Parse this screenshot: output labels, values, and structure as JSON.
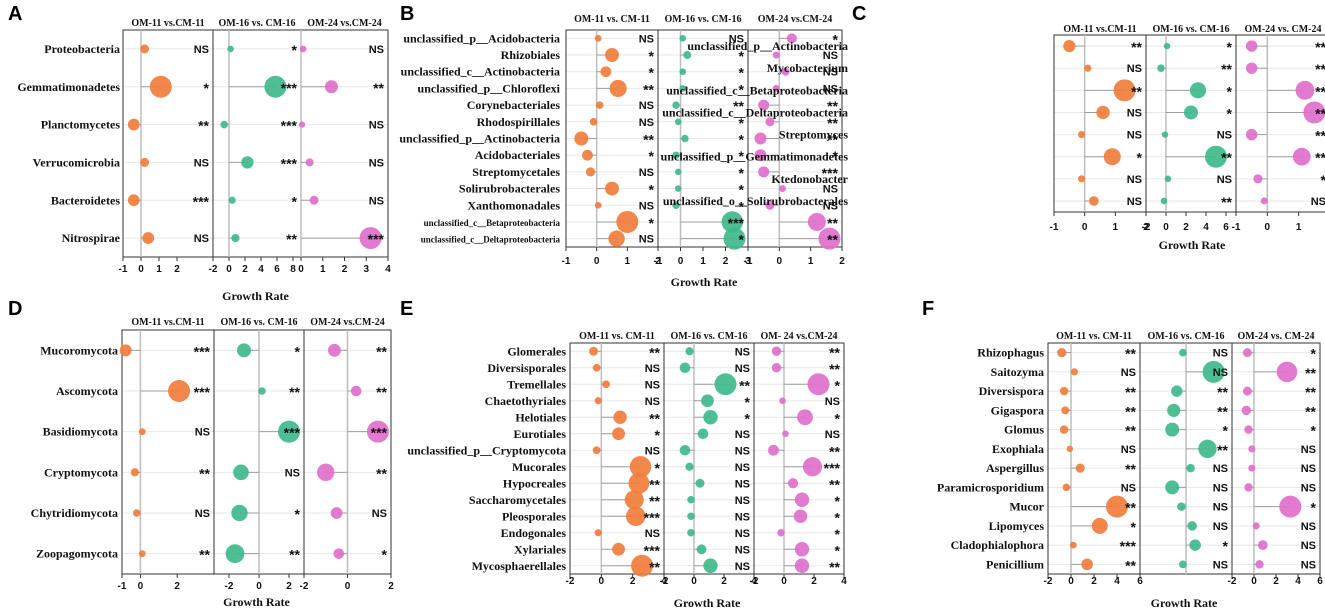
{
  "colors": {
    "om11": "#f07d3c",
    "om16": "#3fba8c",
    "om24": "#e06fcc",
    "frame": "#333333",
    "grid": "#e8e8e8"
  },
  "chart_data": [
    {
      "panel": "A",
      "type": "scatter",
      "xlabel": "Growth Rate",
      "categories": [
        "Proteobacteria",
        "Gemmatimonadetes",
        "Planctomycetes",
        "Verrucomicrobia",
        "Bacteroidetes",
        "Nitrospirae"
      ],
      "series": [
        {
          "name": "OM-11 vs.CM-11",
          "xlim": [
            -1,
            4
          ],
          "ticks": [
            -1,
            0,
            1,
            2
          ],
          "values": [
            0.2,
            1.1,
            -0.4,
            0.2,
            -0.4,
            0.4
          ],
          "sig": [
            "NS",
            "*",
            "**",
            "NS",
            "***",
            "NS"
          ]
        },
        {
          "name": "OM-16 vs. CM-16",
          "xlim": [
            -2,
            9
          ],
          "ticks": [
            -2,
            0,
            2,
            4,
            6,
            8
          ],
          "values": [
            0.2,
            5.8,
            -0.6,
            2.3,
            0.4,
            0.8
          ],
          "sig": [
            "*",
            "***",
            "***",
            "***",
            "*",
            "**"
          ]
        },
        {
          "name": "OM-24 vs.CM-24",
          "xlim": [
            0,
            4
          ],
          "ticks": [
            0,
            1,
            2,
            3,
            4
          ],
          "values": [
            0.1,
            1.4,
            0.05,
            0.4,
            0.6,
            3.2
          ],
          "sig": [
            "NS",
            "**",
            "NS",
            "NS",
            "NS",
            "***"
          ]
        }
      ]
    },
    {
      "panel": "B",
      "type": "scatter",
      "xlabel": "Growth Rate",
      "categories": [
        "unclassified_p__Acidobacteria",
        "Rhizobiales",
        "unclassified_c__Actinobacteria",
        "unclassified_p__Chloroflexi",
        "Corynebacteriales",
        "Rhodospirillales",
        "unclassified_p__Actinobacteria",
        "Acidobacteriales",
        "Streptomycetales",
        "Solirubrobacterales",
        "Xanthomonadales",
        "unclassified_c__Betaproteobacteria",
        "unclassified_c__Deltaproteobacteria"
      ],
      "series": [
        {
          "name": "OM-11 vs. CM-11",
          "xlim": [
            -1,
            2
          ],
          "ticks": [
            -1,
            0,
            1,
            2
          ],
          "values": [
            0.05,
            0.5,
            0.3,
            0.7,
            0.1,
            -0.1,
            -0.5,
            -0.3,
            -0.2,
            0.5,
            0.05,
            1.0,
            0.65
          ],
          "sig": [
            "NS",
            "*",
            "*",
            "**",
            "NS",
            "NS",
            "**",
            "*",
            "NS",
            "*",
            "NS",
            "*",
            "NS"
          ]
        },
        {
          "name": "OM-16 vs. CM-16",
          "xlim": [
            -1,
            3
          ],
          "ticks": [
            -1,
            0,
            1,
            2,
            3
          ],
          "values": [
            0.1,
            0.3,
            0.1,
            0.1,
            -0.2,
            -0.1,
            0.2,
            -0.2,
            -0.1,
            -0.1,
            -0.2,
            2.3,
            2.4
          ],
          "sig": [
            "NS",
            "*",
            "*",
            "*",
            "**",
            "*",
            "*",
            "*",
            "*",
            "*",
            "*",
            "***",
            "*"
          ]
        },
        {
          "name": "OM-24 vs.CM-24",
          "xlim": [
            -1,
            2
          ],
          "ticks": [
            -1,
            0,
            1,
            2
          ],
          "values": [
            0.4,
            -0.1,
            0.2,
            -0.1,
            -0.5,
            -0.3,
            -0.6,
            -0.6,
            -0.5,
            0.1,
            -0.3,
            1.2,
            1.6
          ],
          "sig": [
            "*",
            "NS",
            "NS",
            "NS",
            "**",
            "**",
            "**",
            "*",
            "***",
            "NS",
            "NS",
            "**",
            "**"
          ]
        }
      ]
    },
    {
      "panel": "C",
      "type": "scatter",
      "xlabel": "Growth Rate",
      "categories": [
        "unclassified_p__Actinobacteria",
        "Mycobacterium",
        "unclassified_c__Betaproteobacteria",
        "unclassified_c__Deltaproteobacteria",
        "Streptomyces",
        "unclassified_p__Gemmatimonadetes",
        "Ktedonobacter",
        "unclassified_o__Solirubrobacterales"
      ],
      "series": [
        {
          "name": "OM-11 vs.CM-11",
          "xlim": [
            -1,
            2
          ],
          "ticks": [
            -1,
            0,
            1,
            2
          ],
          "values": [
            -0.5,
            0.1,
            1.3,
            0.6,
            -0.1,
            0.9,
            -0.1,
            0.3
          ],
          "sig": [
            "**",
            "NS",
            "**",
            "NS",
            "NS",
            "*",
            "NS",
            "NS"
          ]
        },
        {
          "name": "OM-16 vs. CM-16",
          "xlim": [
            -2,
            7
          ],
          "ticks": [
            -2,
            0,
            2,
            4,
            6
          ],
          "values": [
            0.1,
            -0.5,
            3.2,
            2.5,
            -0.1,
            5.0,
            0.2,
            -0.2
          ],
          "sig": [
            "*",
            "**",
            "*",
            "*",
            "NS",
            "**",
            "NS",
            "**"
          ]
        },
        {
          "name": "OM-24 vs. CM-24",
          "xlim": [
            -1,
            2
          ],
          "ticks": [
            -1,
            0,
            1,
            2
          ],
          "values": [
            -0.5,
            -0.5,
            1.2,
            1.5,
            -0.5,
            1.1,
            -0.3,
            -0.1
          ],
          "sig": [
            "**",
            "**",
            "**",
            "**",
            "**",
            "**",
            "*",
            "NS"
          ]
        }
      ]
    },
    {
      "panel": "D",
      "type": "scatter",
      "xlabel": "Growth Rate",
      "categories": [
        "Mucoromycota",
        "Ascomycota",
        "Basidiomycota",
        "Cryptomycota",
        "Chytridiomycota",
        "Zoopagomycota"
      ],
      "series": [
        {
          "name": "OM-11 vs.CM-11",
          "xlim": [
            -1,
            4
          ],
          "ticks": [
            -1,
            0,
            2
          ],
          "values": [
            -0.8,
            2.1,
            0.1,
            -0.3,
            -0.2,
            0.1
          ],
          "sig": [
            "***",
            "***",
            "NS",
            "**",
            "NS",
            "**"
          ]
        },
        {
          "name": "OM-16 vs. CM-16",
          "xlim": [
            -3,
            3
          ],
          "ticks": [
            -2,
            0,
            2
          ],
          "values": [
            -1.0,
            0.2,
            2.0,
            -1.2,
            -1.3,
            -1.6
          ],
          "sig": [
            "*",
            "**",
            "***",
            "NS",
            "*",
            "**"
          ]
        },
        {
          "name": "OM-24 vs.CM-24",
          "xlim": [
            -2,
            2
          ],
          "ticks": [
            -2,
            0,
            2
          ],
          "values": [
            -0.6,
            0.4,
            1.4,
            -1.0,
            -0.5,
            -0.4
          ],
          "sig": [
            "**",
            "**",
            "***",
            "**",
            "NS",
            "*"
          ]
        }
      ]
    },
    {
      "panel": "E",
      "type": "scatter",
      "xlabel": "Growth Rate",
      "categories": [
        "Glomerales",
        "Diversisporales",
        "Tremellales",
        "Chaetothyriales",
        "Helotiales",
        "Eurotiales",
        "unclassified_p__Cryptomycota",
        "Mucorales",
        "Hypocreales",
        "Saccharomycetales",
        "Pleosporales",
        "Endogonales",
        "Xylariales",
        "Mycosphaerellales"
      ],
      "series": [
        {
          "name": "OM-11 vs. CM-11",
          "xlim": [
            -2,
            4
          ],
          "ticks": [
            -2,
            0,
            2,
            4
          ],
          "values": [
            -0.5,
            -0.3,
            0.3,
            -0.2,
            1.2,
            1.1,
            -0.3,
            2.5,
            2.4,
            2.1,
            2.2,
            -0.2,
            1.1,
            2.6
          ],
          "sig": [
            "**",
            "NS",
            "NS",
            "NS",
            "**",
            "*",
            "NS",
            "*",
            "**",
            "**",
            "***",
            "NS",
            "***",
            "**"
          ]
        },
        {
          "name": "OM-16 vs. CM-16",
          "xlim": [
            -2,
            4
          ],
          "ticks": [
            -2,
            0,
            2,
            4
          ],
          "values": [
            -0.3,
            -0.6,
            2.1,
            0.9,
            1.1,
            0.6,
            -0.6,
            -0.3,
            0.4,
            -0.2,
            -0.2,
            -0.2,
            0.5,
            1.1
          ],
          "sig": [
            "NS",
            "NS",
            "**",
            "*",
            "*",
            "NS",
            "NS",
            "NS",
            "NS",
            "NS",
            "NS",
            "NS",
            "NS",
            "NS"
          ]
        },
        {
          "name": "OM- 24 vs.CM-24",
          "xlim": [
            -2,
            4
          ],
          "ticks": [
            -2,
            0,
            2,
            4
          ],
          "values": [
            -0.5,
            -0.5,
            2.3,
            -0.1,
            1.4,
            0.1,
            -0.7,
            1.9,
            0.6,
            1.2,
            1.1,
            -0.2,
            1.2,
            1.2
          ],
          "sig": [
            "**",
            "**",
            "*",
            "NS",
            "*",
            "NS",
            "**",
            "***",
            "**",
            "*",
            "*",
            "*",
            "*",
            "**"
          ]
        }
      ]
    },
    {
      "panel": "F",
      "type": "scatter",
      "xlabel": "Growth Rate",
      "categories": [
        "Rhizophagus",
        "Saitozyma",
        "Diversispora",
        "Gigaspora",
        "Glomus",
        "Exophiala",
        "Aspergillus",
        "Paramicrosporidium",
        "Mucor",
        "Lipomyces",
        "Cladophialophora",
        "Penicillium"
      ],
      "series": [
        {
          "name": "OM-11 vs. CM-11",
          "xlim": [
            -2,
            6
          ],
          "ticks": [
            -2,
            0,
            2,
            4,
            6
          ],
          "values": [
            -0.8,
            0.3,
            -0.6,
            -0.5,
            -0.6,
            -0.1,
            0.8,
            -0.4,
            4.0,
            2.5,
            0.2,
            1.4
          ],
          "sig": [
            "**",
            "NS",
            "**",
            "**",
            "**",
            "NS",
            "**",
            "NS",
            "**",
            "*",
            "***",
            "**"
          ]
        },
        {
          "name": "OM-16 vs. CM-16",
          "xlim": [
            -3,
            3
          ],
          "ticks": [],
          "values": [
            -0.2,
            1.8,
            -0.6,
            -0.8,
            -0.9,
            1.4,
            0.3,
            -0.9,
            -0.3,
            0.4,
            0.6,
            -0.2
          ],
          "sig": [
            "NS",
            "NS",
            "**",
            "**",
            "*",
            "**",
            "NS",
            "NS",
            "NS",
            "NS",
            "*",
            "NS"
          ]
        },
        {
          "name": "OM-24 vs. CM-24",
          "xlim": [
            -2,
            6
          ],
          "ticks": [
            -2,
            0,
            2,
            4,
            6
          ],
          "values": [
            -0.6,
            3.0,
            -0.6,
            -0.7,
            -0.5,
            -0.2,
            -0.2,
            -0.5,
            3.3,
            0.2,
            0.8,
            0.5
          ],
          "sig": [
            "*",
            "**",
            "**",
            "**",
            "*",
            "NS",
            "NS",
            "NS",
            "*",
            "NS",
            "NS",
            "NS"
          ]
        }
      ]
    }
  ]
}
